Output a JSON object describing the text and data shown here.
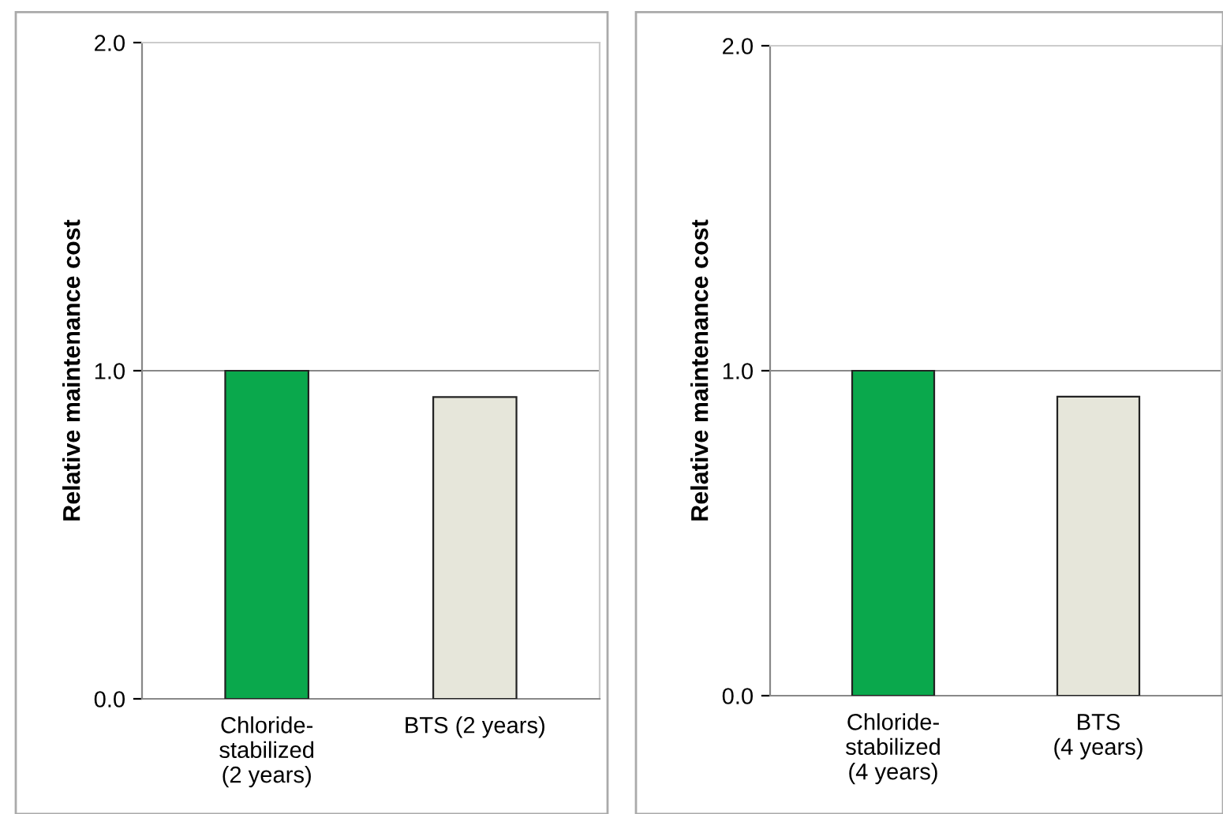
{
  "chart_data": [
    {
      "type": "bar",
      "ylabel": "Relative maintenance cost",
      "categories": [
        "Chloride-\nstabilized\n(2 years)",
        "BTS (2 years)"
      ],
      "values": [
        1.0,
        0.92
      ],
      "colors": [
        "#0aa84c",
        "#e6e6da"
      ],
      "ylim": [
        0,
        2
      ],
      "yticks": [
        {
          "value": 0,
          "label": "0.0"
        },
        {
          "value": 1,
          "label": "1.0"
        },
        {
          "value": 2,
          "label": "2.0"
        }
      ],
      "grid": "y"
    },
    {
      "type": "bar",
      "ylabel": "Relative maintenance cost",
      "categories": [
        "Chloride-\nstabilized\n(4 years)",
        "BTS\n(4 years)"
      ],
      "values": [
        1.0,
        0.92
      ],
      "colors": [
        "#0aa84c",
        "#e6e6da"
      ],
      "ylim": [
        0,
        2
      ],
      "yticks": [
        {
          "value": 0,
          "label": "0.0"
        },
        {
          "value": 1,
          "label": "1.0"
        },
        {
          "value": 2,
          "label": "2.0"
        }
      ],
      "grid": "y"
    }
  ]
}
